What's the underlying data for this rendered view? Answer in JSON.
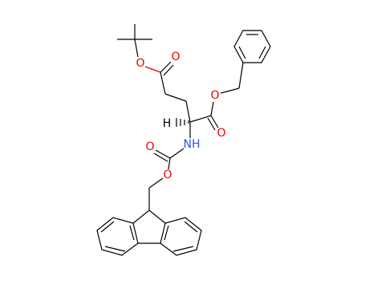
{
  "atoms": [
    {
      "label": "O"
    },
    {
      "label": "O"
    },
    {
      "label": "O"
    },
    {
      "label": "O"
    },
    {
      "label": "H"
    },
    {
      "label": "NH"
    },
    {
      "label": "O"
    },
    {
      "label": "O"
    }
  ]
}
